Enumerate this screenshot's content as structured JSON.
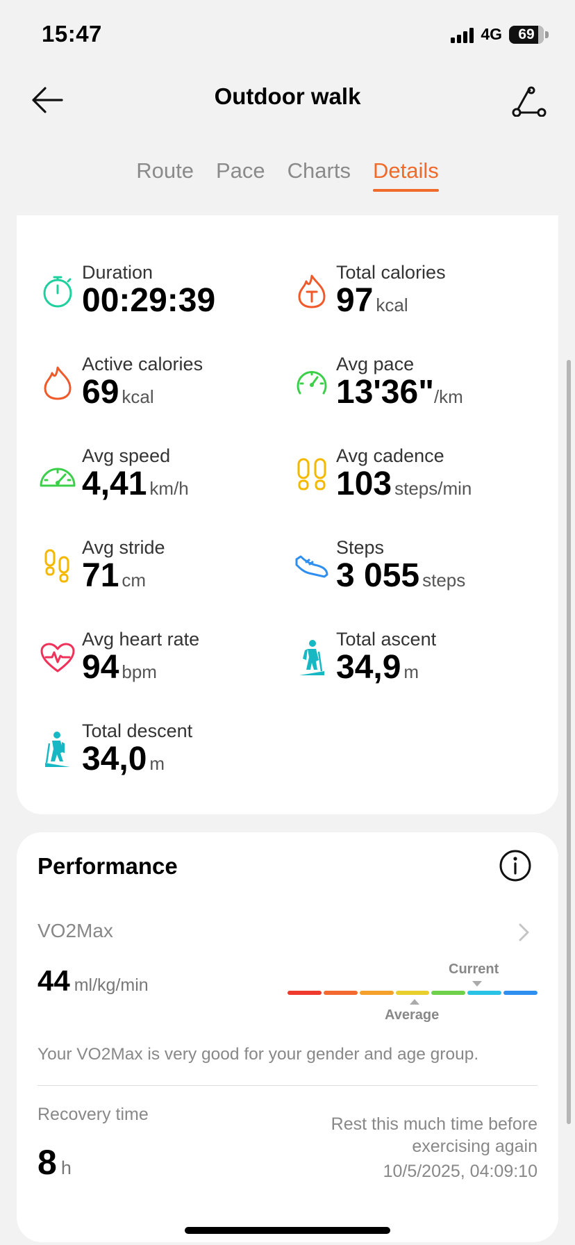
{
  "status_bar": {
    "time": "15:47",
    "network": "4G",
    "battery": "69"
  },
  "header": {
    "title": "Outdoor walk"
  },
  "tabs": [
    {
      "label": "Route",
      "active": false
    },
    {
      "label": "Pace",
      "active": false
    },
    {
      "label": "Charts",
      "active": false
    },
    {
      "label": "Details",
      "active": true
    }
  ],
  "details": {
    "duration": {
      "label": "Duration",
      "value": "00:29:39",
      "unit": "",
      "icon": "stopwatch-icon"
    },
    "total_calories": {
      "label": "Total calories",
      "value": "97",
      "unit": "kcal",
      "icon": "total-calories-icon"
    },
    "active_calories": {
      "label": "Active calories",
      "value": "69",
      "unit": "kcal",
      "icon": "flame-icon"
    },
    "avg_pace": {
      "label": "Avg pace",
      "value": "13'36\"",
      "unit": "/km",
      "icon": "pace-gauge-icon"
    },
    "avg_speed": {
      "label": "Avg speed",
      "value": "4,41",
      "unit": "km/h",
      "icon": "speedometer-icon"
    },
    "avg_cadence": {
      "label": "Avg cadence",
      "value": "103",
      "unit": "steps/min",
      "icon": "footprints-icon"
    },
    "avg_stride": {
      "label": "Avg stride",
      "value": "71",
      "unit": "cm",
      "icon": "stride-footprints-icon"
    },
    "steps": {
      "label": "Steps",
      "value": "3 055",
      "unit": "steps",
      "icon": "shoe-icon"
    },
    "avg_heart_rate": {
      "label": "Avg heart rate",
      "value": "94",
      "unit": "bpm",
      "icon": "heart-rate-icon"
    },
    "total_ascent": {
      "label": "Total ascent",
      "value": "34,9",
      "unit": "m",
      "icon": "hiker-ascent-icon"
    },
    "total_descent": {
      "label": "Total descent",
      "value": "34,0",
      "unit": "m",
      "icon": "hiker-descent-icon"
    }
  },
  "performance": {
    "title": "Performance",
    "vo2max": {
      "label": "VO2Max",
      "value": "44",
      "unit": "ml/kg/min",
      "current_label": "Current",
      "average_label": "Average",
      "scale_colors": [
        "#ef3b2d",
        "#f36a30",
        "#f5a02a",
        "#e8cf2e",
        "#6fd14a",
        "#2ac3e6",
        "#2e8ff0"
      ],
      "description": "Your VO2Max is very good for your gender and age group."
    },
    "recovery": {
      "label": "Recovery time",
      "value": "8",
      "unit": "h",
      "note": "Rest this much time before exercising again",
      "date": "10/5/2025, 04:09:10"
    }
  },
  "colors": {
    "accent": "#f06a2a"
  }
}
